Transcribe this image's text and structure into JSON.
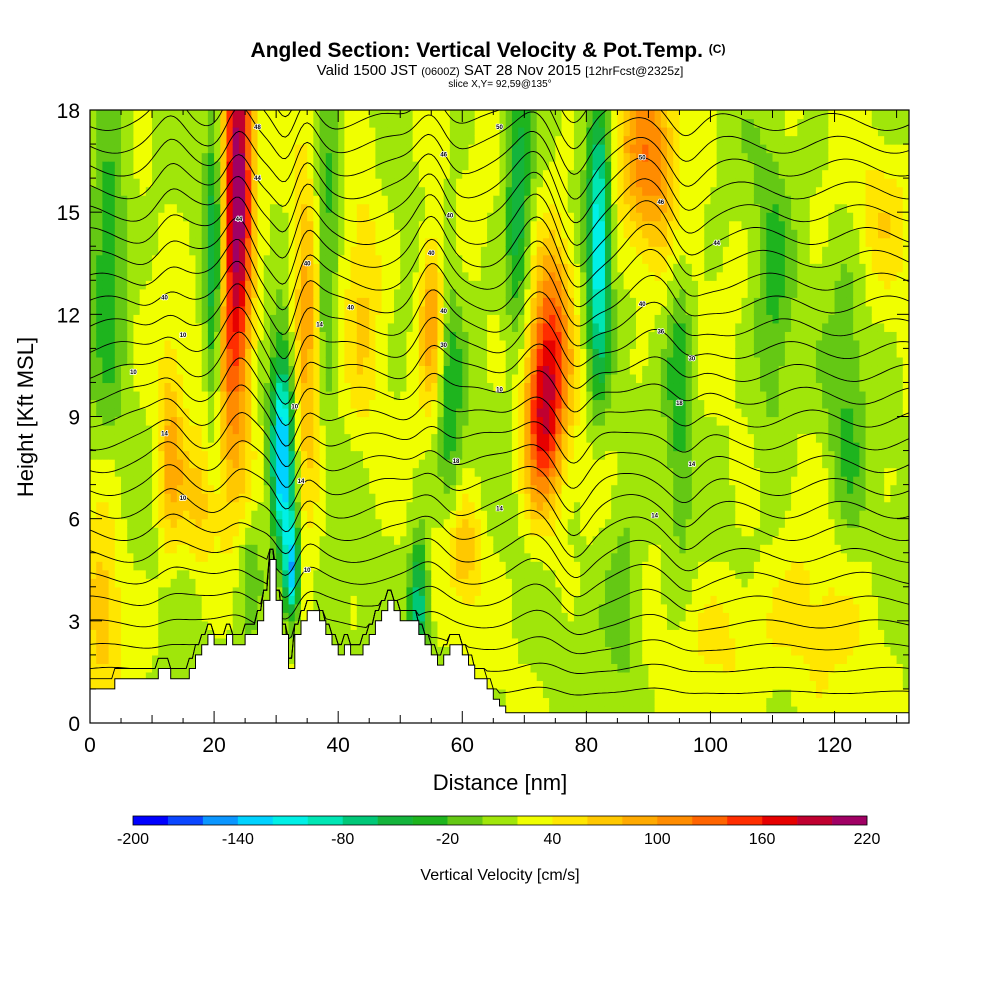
{
  "chart_data": {
    "type": "heatmap",
    "title": "Angled Section: Vertical Velocity & Pot.Temp.",
    "title_unit": "(C)",
    "subtitle_main_a": "Valid 1500 JST",
    "subtitle_z": "(0600Z)",
    "subtitle_main_b": "SAT 28 Nov 2015",
    "subtitle_fcst": "[12hrFcst@2325z]",
    "slice_text": "slice X,Y= 92,59@135°",
    "xlabel": "Distance [nm]",
    "ylabel": "Height [Kft MSL]",
    "xlim": [
      0,
      132
    ],
    "ylim": [
      0,
      18
    ],
    "x_ticks": [
      {
        "value": 0,
        "label": "0"
      },
      {
        "value": 20,
        "label": "20"
      },
      {
        "value": 40,
        "label": "40"
      },
      {
        "value": 60,
        "label": "60"
      },
      {
        "value": 80,
        "label": "80"
      },
      {
        "value": 100,
        "label": "100"
      },
      {
        "value": 120,
        "label": "120"
      }
    ],
    "y_ticks": [
      {
        "value": 0,
        "label": "0"
      },
      {
        "value": 3,
        "label": "3"
      },
      {
        "value": 6,
        "label": "6"
      },
      {
        "value": 9,
        "label": "9"
      },
      {
        "value": 12,
        "label": "12"
      },
      {
        "value": 15,
        "label": "15"
      },
      {
        "value": 18,
        "label": "18"
      }
    ],
    "colorbar": {
      "label": "Vertical Velocity [cm/s]",
      "min": -200,
      "max": 220,
      "step": 20,
      "tick_labels": [
        {
          "value": -200,
          "label": "-200"
        },
        {
          "value": -140,
          "label": "-140"
        },
        {
          "value": -80,
          "label": "-80"
        },
        {
          "value": -20,
          "label": "-20"
        },
        {
          "value": 40,
          "label": "40"
        },
        {
          "value": 100,
          "label": "100"
        },
        {
          "value": 160,
          "label": "160"
        },
        {
          "value": 220,
          "label": "220"
        }
      ],
      "colors": [
        "#0000ff",
        "#0a46ff",
        "#0a96ff",
        "#00d2ff",
        "#00f0e6",
        "#00e6b4",
        "#00c878",
        "#14b43c",
        "#1eb41e",
        "#64c814",
        "#a0e60a",
        "#f0ff00",
        "#ffe600",
        "#ffc800",
        "#ffaa00",
        "#ff8c00",
        "#ff6400",
        "#ff2d00",
        "#e60000",
        "#c00030",
        "#a00064",
        "#780078"
      ]
    },
    "terrain_profile_kft": {
      "x": [
        0,
        4,
        4,
        11,
        11,
        13,
        13,
        16,
        16,
        17,
        17,
        18,
        18,
        19,
        19,
        20,
        20,
        22,
        22,
        23,
        23,
        25,
        25,
        27,
        27,
        28,
        28,
        29,
        29,
        30,
        30,
        31,
        31,
        32,
        32,
        33,
        33,
        34,
        34,
        35,
        35,
        37,
        37,
        38,
        38,
        39,
        39,
        40,
        40,
        41,
        41,
        42,
        42,
        44,
        44,
        45,
        45,
        46,
        46,
        47,
        47,
        48,
        48,
        49,
        49,
        50,
        50,
        53,
        53,
        54,
        54,
        55,
        55,
        56,
        56,
        57,
        57,
        58,
        58,
        60,
        60,
        61,
        61,
        62,
        62,
        63,
        63,
        64,
        64,
        65,
        65,
        66,
        66,
        67,
        67,
        68,
        68,
        132
      ],
      "h": [
        1,
        1,
        1.3,
        1.3,
        1.6,
        1.6,
        1.3,
        1.3,
        1.6,
        1.6,
        2,
        2,
        2.3,
        2.3,
        2.6,
        2.6,
        2.3,
        2.3,
        2.6,
        2.6,
        2.3,
        2.3,
        2.6,
        2.6,
        3,
        3,
        3.6,
        3.6,
        4.8,
        4.8,
        3.6,
        3.6,
        2.6,
        2.6,
        1.6,
        1.6,
        2.6,
        2.6,
        3,
        3,
        3.3,
        3.3,
        3,
        3,
        2.6,
        2.6,
        2.3,
        2.3,
        2,
        2,
        2.3,
        2.3,
        2,
        2,
        2.3,
        2.3,
        2.6,
        2.6,
        3,
        3,
        3.3,
        3.3,
        3.6,
        3.6,
        3.3,
        3.3,
        3,
        3,
        2.6,
        2.6,
        2.3,
        2.3,
        2,
        2,
        1.7,
        1.7,
        2,
        2,
        2.3,
        2.3,
        2,
        2,
        1.7,
        1.7,
        1.3,
        1.3,
        1.3,
        1.3,
        1,
        1,
        0.7,
        0.7,
        0.5,
        0.5,
        0.3,
        0.3,
        0.3,
        0.3
      ]
    },
    "updraft_cores": [
      {
        "x": 24,
        "y": 17,
        "wx": 2.2,
        "wy": 5,
        "value": 160
      },
      {
        "x": 23,
        "y": 12,
        "wx": 3,
        "wy": 5,
        "value": 110
      },
      {
        "x": 73,
        "y": 9,
        "wx": 3.2,
        "wy": 2.8,
        "value": 150
      },
      {
        "x": 75,
        "y": 12,
        "wx": 3,
        "wy": 3,
        "value": 80
      },
      {
        "x": 90,
        "y": 16.5,
        "wx": 5,
        "wy": 3,
        "value": 90
      },
      {
        "x": 55,
        "y": 12,
        "wx": 2,
        "wy": 2.5,
        "value": 90
      },
      {
        "x": 35,
        "y": 11,
        "wx": 2.2,
        "wy": 5,
        "value": 80
      },
      {
        "x": 13,
        "y": 7.8,
        "wx": 2.2,
        "wy": 3,
        "value": 70
      },
      {
        "x": 60,
        "y": 5,
        "wx": 3,
        "wy": 1.6,
        "value": 60
      },
      {
        "x": 2,
        "y": 3.5,
        "wx": 3,
        "wy": 3,
        "value": 50
      },
      {
        "x": 18,
        "y": 6.5,
        "wx": 3,
        "wy": 2,
        "value": 50
      },
      {
        "x": 44,
        "y": 13,
        "wx": 3,
        "wy": 4,
        "value": 40
      },
      {
        "x": 104,
        "y": 2.5,
        "wx": 8,
        "wy": 2,
        "value": 30
      },
      {
        "x": 118,
        "y": 3,
        "wx": 8,
        "wy": 3,
        "value": 25
      },
      {
        "x": 128,
        "y": 15,
        "wx": 5,
        "wy": 2,
        "value": 30
      }
    ],
    "downdraft_cores": [
      {
        "x": 31,
        "y": 8,
        "wx": 1.8,
        "wy": 3,
        "value": -160
      },
      {
        "x": 32.5,
        "y": 4.5,
        "wx": 1.2,
        "wy": 1.5,
        "value": -150
      },
      {
        "x": 82,
        "y": 14,
        "wx": 1.8,
        "wy": 4,
        "value": -140
      },
      {
        "x": 20,
        "y": 13,
        "wx": 1.5,
        "wy": 5,
        "value": -100
      },
      {
        "x": 53,
        "y": 3.5,
        "wx": 1.6,
        "wy": 2,
        "value": -100
      },
      {
        "x": 69,
        "y": 15,
        "wx": 2,
        "wy": 4,
        "value": -80
      },
      {
        "x": 38,
        "y": 14,
        "wx": 2,
        "wy": 4,
        "value": -60
      },
      {
        "x": 3,
        "y": 14,
        "wx": 3,
        "wy": 4,
        "value": -60
      },
      {
        "x": 58,
        "y": 9,
        "wx": 2,
        "wy": 4,
        "value": -50
      },
      {
        "x": 95,
        "y": 10,
        "wx": 2,
        "wy": 5,
        "value": -45
      },
      {
        "x": 110,
        "y": 12,
        "wx": 3,
        "wy": 5,
        "value": -40
      },
      {
        "x": 86,
        "y": 4,
        "wx": 3,
        "wy": 3,
        "value": -35
      },
      {
        "x": 26,
        "y": 4.5,
        "wx": 2,
        "wy": 2,
        "value": -40
      },
      {
        "x": 122,
        "y": 9,
        "wx": 3,
        "wy": 5,
        "value": -35
      }
    ],
    "theta_contours": {
      "count": 28,
      "base_kft": 0.9,
      "spacing_kft": 0.67,
      "waves": [
        {
          "x": 24,
          "amp": 1.3,
          "width": 3,
          "decay": 14
        },
        {
          "x": 34,
          "amp": 1.0,
          "width": 3,
          "decay": 12
        },
        {
          "x": 55,
          "amp": 1.0,
          "width": 3,
          "decay": 12
        },
        {
          "x": 72,
          "amp": 1.0,
          "width": 4,
          "decay": 10
        },
        {
          "x": 90,
          "amp": 0.8,
          "width": 5,
          "decay": 14
        },
        {
          "x": 13,
          "amp": 0.6,
          "width": 3,
          "decay": 10
        },
        {
          "x": 32,
          "amp": -1.2,
          "width": 2.5,
          "decay": 6
        },
        {
          "x": 78,
          "amp": -0.8,
          "width": 3,
          "decay": 8
        },
        {
          "x": 96,
          "amp": -0.5,
          "width": 3,
          "decay": 8
        }
      ],
      "labels": [
        {
          "x": 27,
          "y": 17.5,
          "label": "48"
        },
        {
          "x": 27,
          "y": 16,
          "label": "44"
        },
        {
          "x": 24,
          "y": 14.8,
          "label": "44"
        },
        {
          "x": 35,
          "y": 13.5,
          "label": "40"
        },
        {
          "x": 37,
          "y": 11.7,
          "label": "14"
        },
        {
          "x": 42,
          "y": 12.2,
          "label": "40"
        },
        {
          "x": 12,
          "y": 12.5,
          "label": "40"
        },
        {
          "x": 15,
          "y": 11.4,
          "label": "10"
        },
        {
          "x": 7,
          "y": 10.3,
          "label": "10"
        },
        {
          "x": 12,
          "y": 8.5,
          "label": "14"
        },
        {
          "x": 15,
          "y": 6.6,
          "label": "10"
        },
        {
          "x": 33,
          "y": 9.3,
          "label": "10"
        },
        {
          "x": 34,
          "y": 7.1,
          "label": "14"
        },
        {
          "x": 35,
          "y": 4.5,
          "label": "10"
        },
        {
          "x": 66,
          "y": 17.5,
          "label": "50"
        },
        {
          "x": 57,
          "y": 16.7,
          "label": "46"
        },
        {
          "x": 58,
          "y": 14.9,
          "label": "40"
        },
        {
          "x": 55,
          "y": 13.8,
          "label": "40"
        },
        {
          "x": 57,
          "y": 12.1,
          "label": "40"
        },
        {
          "x": 57,
          "y": 11.1,
          "label": "30"
        },
        {
          "x": 66,
          "y": 9.8,
          "label": "10"
        },
        {
          "x": 59,
          "y": 7.7,
          "label": "18"
        },
        {
          "x": 66,
          "y": 6.3,
          "label": "14"
        },
        {
          "x": 89,
          "y": 16.6,
          "label": "50"
        },
        {
          "x": 92,
          "y": 15.3,
          "label": "46"
        },
        {
          "x": 101,
          "y": 14.1,
          "label": "44"
        },
        {
          "x": 89,
          "y": 12.3,
          "label": "40"
        },
        {
          "x": 92,
          "y": 11.5,
          "label": "36"
        },
        {
          "x": 97,
          "y": 10.7,
          "label": "30"
        },
        {
          "x": 95,
          "y": 9.4,
          "label": "18"
        },
        {
          "x": 97,
          "y": 7.6,
          "label": "14"
        },
        {
          "x": 91,
          "y": 6.1,
          "label": "14"
        }
      ]
    }
  }
}
